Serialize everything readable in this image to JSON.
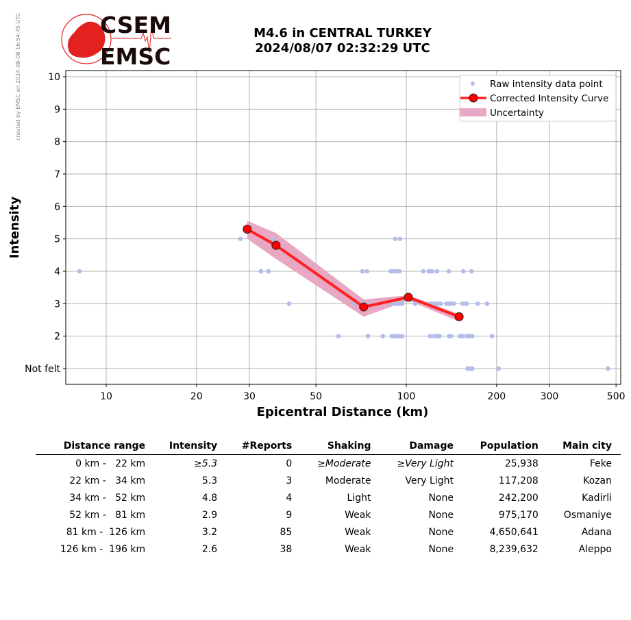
{
  "credit": "created by EMSC on 2024-08-08 16:54:45 UTC",
  "logo": {
    "top": "CSEM",
    "bottom": "EMSC",
    "color": "#e3211e"
  },
  "title": {
    "line1": "M4.6 in CENTRAL TURKEY",
    "line2": "2024/08/07 02:32:29 UTC"
  },
  "chart_data": {
    "type": "scatter",
    "xlabel": "Epicentral Distance (km)",
    "ylabel": "Intensity",
    "xscale": "log",
    "xlim": [
      7.3,
      518
    ],
    "ylim": [
      0.5,
      10.2
    ],
    "grid": true,
    "xticks": [
      10,
      20,
      30,
      50,
      100,
      200,
      300,
      500
    ],
    "yticks": [
      {
        "v": 1,
        "label": "Not felt"
      },
      {
        "v": 2,
        "label": "2"
      },
      {
        "v": 3,
        "label": "3"
      },
      {
        "v": 4,
        "label": "4"
      },
      {
        "v": 5,
        "label": "5"
      },
      {
        "v": 6,
        "label": "6"
      },
      {
        "v": 7,
        "label": "7"
      },
      {
        "v": 8,
        "label": "8"
      },
      {
        "v": 9,
        "label": "9"
      },
      {
        "v": 10,
        "label": "10"
      }
    ],
    "legend_position": "top-right",
    "series": [
      {
        "name": "Raw intensity data point",
        "color": "#b3bde8",
        "points": [
          [
            28,
            5
          ],
          [
            36,
            5
          ],
          [
            91.9,
            5
          ],
          [
            95.3,
            5
          ],
          [
            8.15,
            4
          ],
          [
            32.8,
            4
          ],
          [
            34.7,
            4
          ],
          [
            71.4,
            4
          ],
          [
            74,
            4
          ],
          [
            88.7,
            4
          ],
          [
            90,
            4
          ],
          [
            91.5,
            4
          ],
          [
            93,
            4
          ],
          [
            95,
            4
          ],
          [
            114,
            4
          ],
          [
            119,
            4
          ],
          [
            120.5,
            4
          ],
          [
            122,
            4
          ],
          [
            126.5,
            4
          ],
          [
            138.6,
            4
          ],
          [
            155,
            4
          ],
          [
            165,
            4
          ],
          [
            40.7,
            3
          ],
          [
            67,
            3
          ],
          [
            71,
            3
          ],
          [
            74,
            3
          ],
          [
            89,
            3
          ],
          [
            91,
            3
          ],
          [
            93,
            3
          ],
          [
            95,
            3
          ],
          [
            97,
            3
          ],
          [
            107,
            3
          ],
          [
            118,
            3
          ],
          [
            121,
            3
          ],
          [
            124,
            3
          ],
          [
            126,
            3
          ],
          [
            128,
            3
          ],
          [
            130,
            3
          ],
          [
            136,
            3
          ],
          [
            139,
            3
          ],
          [
            141,
            3
          ],
          [
            144,
            3
          ],
          [
            154,
            3
          ],
          [
            156,
            3
          ],
          [
            159,
            3
          ],
          [
            173,
            3
          ],
          [
            186,
            3
          ],
          [
            59.4,
            2
          ],
          [
            74.5,
            2
          ],
          [
            83.5,
            2
          ],
          [
            89.5,
            2
          ],
          [
            91,
            2
          ],
          [
            93,
            2
          ],
          [
            95,
            2
          ],
          [
            97,
            2
          ],
          [
            120,
            2
          ],
          [
            124,
            2
          ],
          [
            127,
            2
          ],
          [
            129,
            2
          ],
          [
            139,
            2
          ],
          [
            141,
            2
          ],
          [
            151,
            2
          ],
          [
            154,
            2
          ],
          [
            159,
            2
          ],
          [
            162,
            2
          ],
          [
            166,
            2
          ],
          [
            193,
            2
          ],
          [
            160,
            1
          ],
          [
            163,
            1
          ],
          [
            166,
            1
          ],
          [
            203,
            1
          ],
          [
            470,
            1
          ]
        ]
      },
      {
        "name": "Corrected Intensity Curve",
        "color": "#ff2020",
        "points": [
          [
            29.5,
            5.3
          ],
          [
            36.8,
            4.8
          ],
          [
            72.1,
            2.9
          ],
          [
            101.6,
            3.2
          ],
          [
            150,
            2.6
          ]
        ]
      },
      {
        "name": "Uncertainty",
        "color": "#e8a8c4",
        "upper": [
          5.56,
          5.18,
          3.13,
          3.26,
          2.68
        ],
        "lower": [
          5.0,
          4.38,
          2.6,
          3.1,
          2.45
        ]
      }
    ]
  },
  "table": {
    "headers": [
      "Distance range",
      "Intensity",
      "#Reports",
      "Shaking",
      "Damage",
      "Population",
      "Main city"
    ],
    "rows": [
      {
        "range": "0 km -   22 km",
        "intensity": "≥5.3",
        "reports": "0",
        "shaking": "≥Moderate",
        "damage": "≥Very Light",
        "population": "25,938",
        "city": "Feke",
        "italic": true
      },
      {
        "range": "22 km -   34 km",
        "intensity": "5.3",
        "reports": "3",
        "shaking": "Moderate",
        "damage": "Very Light",
        "population": "117,208",
        "city": "Kozan"
      },
      {
        "range": "34 km -   52 km",
        "intensity": "4.8",
        "reports": "4",
        "shaking": "Light",
        "damage": "None",
        "population": "242,200",
        "city": "Kadirli"
      },
      {
        "range": "52 km -   81 km",
        "intensity": "2.9",
        "reports": "9",
        "shaking": "Weak",
        "damage": "None",
        "population": "975,170",
        "city": "Osmaniye"
      },
      {
        "range": "81 km -  126 km",
        "intensity": "3.2",
        "reports": "85",
        "shaking": "Weak",
        "damage": "None",
        "population": "4,650,641",
        "city": "Adana"
      },
      {
        "range": "126 km -  196 km",
        "intensity": "2.6",
        "reports": "38",
        "shaking": "Weak",
        "damage": "None",
        "population": "8,239,632",
        "city": "Aleppo"
      }
    ]
  }
}
